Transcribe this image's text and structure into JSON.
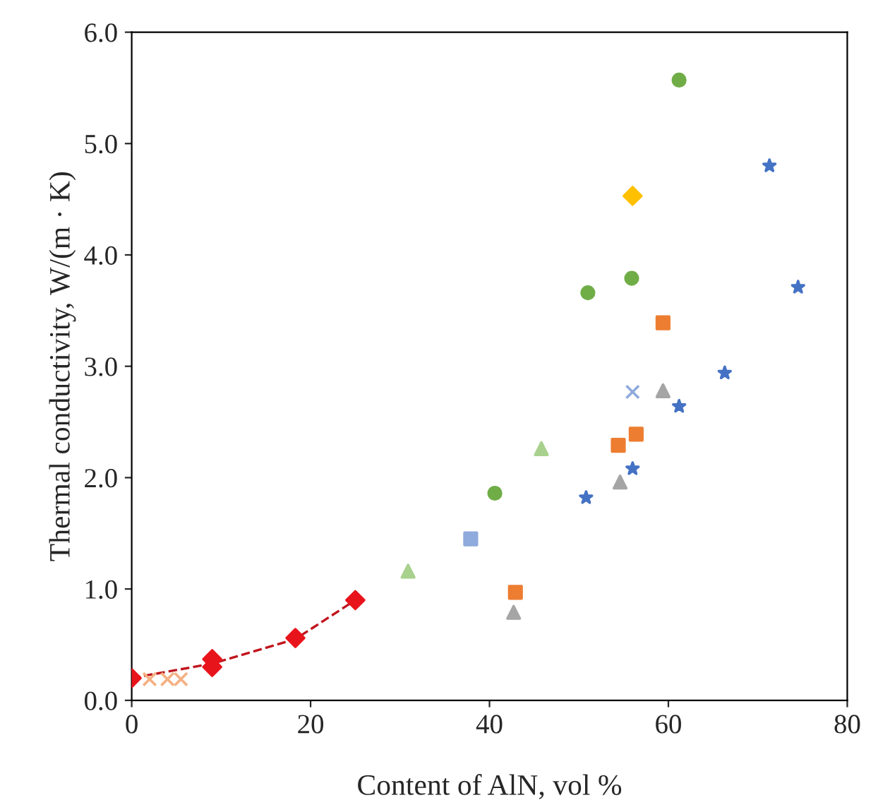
{
  "chart_data": {
    "type": "scatter",
    "xlabel": "Content of AlN, vol %",
    "ylabel": "Thermal conductivity, W/(m · K)",
    "xlim": [
      0,
      80
    ],
    "xticks": [
      0,
      20,
      40,
      60,
      80
    ],
    "ylim": [
      0,
      6
    ],
    "yticks": [
      {
        "value": 0,
        "label": "0.0"
      },
      {
        "value": 1,
        "label": "1.0"
      },
      {
        "value": 2,
        "label": "2.0"
      },
      {
        "value": 3,
        "label": "3.0"
      },
      {
        "value": 4,
        "label": "4.0"
      },
      {
        "value": 5,
        "label": "5.0"
      },
      {
        "value": 6,
        "label": "6.0"
      }
    ],
    "grid": false,
    "legend": false,
    "series": [
      {
        "type": "line",
        "color": "#c0141c",
        "line_style": "dashed",
        "marker": "none",
        "x": [
          0,
          9,
          18.3,
          25
        ],
        "values": [
          0.2,
          0.33,
          0.55,
          0.9
        ]
      },
      {
        "color": "#e8141c",
        "marker": "diamond",
        "x": [
          0,
          9,
          9,
          18.3,
          25
        ],
        "values": [
          0.2,
          0.3,
          0.37,
          0.56,
          0.9
        ]
      },
      {
        "color": "#f4b183",
        "marker": "cross",
        "x": [
          2,
          4,
          5.5
        ],
        "values": [
          0.19,
          0.19,
          0.19
        ]
      },
      {
        "color": "#a9d18e",
        "marker": "triangle",
        "x": [
          30.9,
          45.8
        ],
        "values": [
          1.16,
          2.26
        ]
      },
      {
        "color": "#70ad47",
        "marker": "circle",
        "x": [
          40.6,
          51,
          55.9,
          61.2
        ],
        "values": [
          1.86,
          3.66,
          3.79,
          5.57
        ]
      },
      {
        "color": "#ffc000",
        "marker": "diamond",
        "x": [
          56
        ],
        "values": [
          4.53
        ]
      },
      {
        "color": "#ed7d31",
        "marker": "square",
        "x": [
          42.9,
          54.4,
          59.4
        ],
        "values": [
          0.97,
          2.29,
          3.39
        ]
      },
      {
        "color": "#ed7d31",
        "marker": "square",
        "x": [
          56.4
        ],
        "values": [
          2.39
        ]
      },
      {
        "color": "#a5a5a5",
        "marker": "triangle",
        "x": [
          42.7,
          54.6,
          59.4
        ],
        "values": [
          0.79,
          1.96,
          2.78
        ]
      },
      {
        "color": "#4472c4",
        "marker": "star",
        "x": [
          50.8,
          56,
          61.2,
          66.3,
          71.3,
          74.5
        ],
        "values": [
          1.82,
          2.08,
          2.64,
          2.94,
          4.8,
          3.71
        ]
      },
      {
        "color": "#8faadc",
        "marker": "cross",
        "x": [
          56
        ],
        "values": [
          2.77
        ]
      },
      {
        "color": "#8faadc",
        "marker": "square",
        "x": [
          37.9
        ],
        "values": [
          1.45
        ]
      }
    ]
  }
}
